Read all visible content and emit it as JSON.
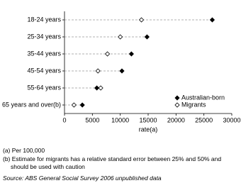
{
  "chart_data": {
    "type": "dot",
    "categories": [
      "18-24 years",
      "25-34 years",
      "35-44 years",
      "45-54 years",
      "55-64 years",
      "65 years and over(b)"
    ],
    "series": [
      {
        "name": "Australian-born",
        "color": "#000000",
        "marker": "filled-diamond",
        "values": [
          26500,
          14800,
          12000,
          10300,
          5800,
          3200
        ]
      },
      {
        "name": "Migrants",
        "color": "#000000",
        "marker": "open-diamond",
        "values": [
          13800,
          10000,
          7700,
          6000,
          6500,
          1700
        ]
      }
    ],
    "xlabel": "rate(a)",
    "xlim": [
      0,
      30000
    ],
    "xticks": [
      0,
      5000,
      10000,
      15000,
      20000,
      25000,
      30000
    ],
    "legend": "lower right",
    "footnotes": [
      "(a) Per 100,000",
      "(b) Estimate for migrants has a relative standard error between 25% and 50% and should be used with caution"
    ],
    "source": "Source: ABS General Social Survey 2006 unpublished data"
  }
}
